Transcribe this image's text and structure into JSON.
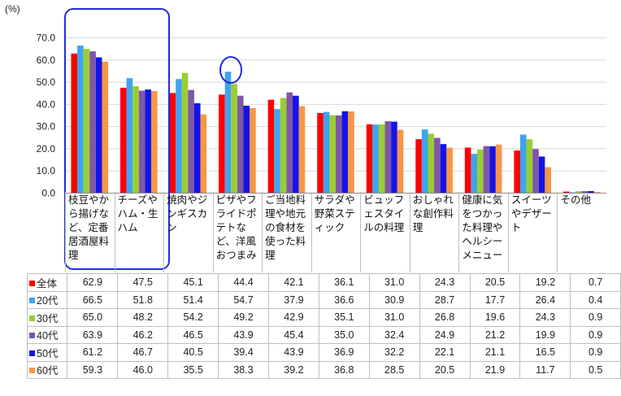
{
  "unit_label": "(%)",
  "chart_data": {
    "type": "bar",
    "ylim": [
      0,
      70
    ],
    "y_ticks": [
      "0.0",
      "10.0",
      "20.0",
      "30.0",
      "40.0",
      "50.0",
      "60.0",
      "70.0"
    ],
    "grid": true,
    "legend": "data-table",
    "categories": [
      "枝豆やから揚げなど、定番居酒屋料理",
      "チーズやハム・生ハム",
      "焼肉やジンギスカン",
      "ピザやフライドポテトなど、洋風おつまみ",
      "ご当地料理や地元の食材を使った料理",
      "サラダや野菜スティック",
      "ビュッフェスタイルの料理",
      "おしゃれな創作料理",
      "健康に気をつかった料理やヘルシーメニュー",
      "スイーツやデザート",
      "その他"
    ],
    "series": [
      {
        "name": "全体",
        "color": "#ff0000",
        "values": [
          62.9,
          47.5,
          45.1,
          44.4,
          42.1,
          36.1,
          31.0,
          24.3,
          20.5,
          19.2,
          0.7
        ]
      },
      {
        "name": "20代",
        "color": "#3fa3f0",
        "values": [
          66.5,
          51.8,
          51.4,
          54.7,
          37.9,
          36.6,
          30.9,
          28.7,
          17.7,
          26.4,
          0.4
        ]
      },
      {
        "name": "30代",
        "color": "#9acd32",
        "values": [
          65.0,
          48.2,
          54.2,
          49.2,
          42.9,
          35.1,
          31.0,
          26.8,
          19.6,
          24.3,
          0.9
        ]
      },
      {
        "name": "40代",
        "color": "#7e57a8",
        "values": [
          63.9,
          46.2,
          46.5,
          43.9,
          45.4,
          35.0,
          32.4,
          24.9,
          21.2,
          19.9,
          0.9
        ]
      },
      {
        "name": "50代",
        "color": "#1414e6",
        "values": [
          61.2,
          46.7,
          40.5,
          39.4,
          43.9,
          36.9,
          32.2,
          22.1,
          21.1,
          16.5,
          0.9
        ]
      },
      {
        "name": "60代",
        "color": "#f79646",
        "values": [
          59.3,
          46.0,
          35.5,
          38.3,
          39.2,
          36.8,
          28.5,
          20.5,
          21.9,
          11.7,
          0.5
        ]
      }
    ],
    "table_values": [
      [
        "62.9",
        "47.5",
        "45.1",
        "44.4",
        "42.1",
        "36.1",
        "31.0",
        "24.3",
        "20.5",
        "19.2",
        "0.7"
      ],
      [
        "66.5",
        "51.8",
        "51.4",
        "54.7",
        "37.9",
        "36.6",
        "30.9",
        "28.7",
        "17.7",
        "26.4",
        "0.4"
      ],
      [
        "65.0",
        "48.2",
        "54.2",
        "49.2",
        "42.9",
        "35.1",
        "31.0",
        "26.8",
        "19.6",
        "24.3",
        "0.9"
      ],
      [
        "63.9",
        "46.2",
        "46.5",
        "43.9",
        "45.4",
        "35.0",
        "32.4",
        "24.9",
        "21.2",
        "19.9",
        "0.9"
      ],
      [
        "61.2",
        "46.7",
        "40.5",
        "39.4",
        "43.9",
        "36.9",
        "32.2",
        "22.1",
        "21.1",
        "16.5",
        "0.9"
      ],
      [
        "59.3",
        "46.0",
        "35.5",
        "38.3",
        "39.2",
        "36.8",
        "28.5",
        "20.5",
        "21.9",
        "11.7",
        "0.5"
      ]
    ],
    "highlight_color": "#1e2ddc"
  }
}
